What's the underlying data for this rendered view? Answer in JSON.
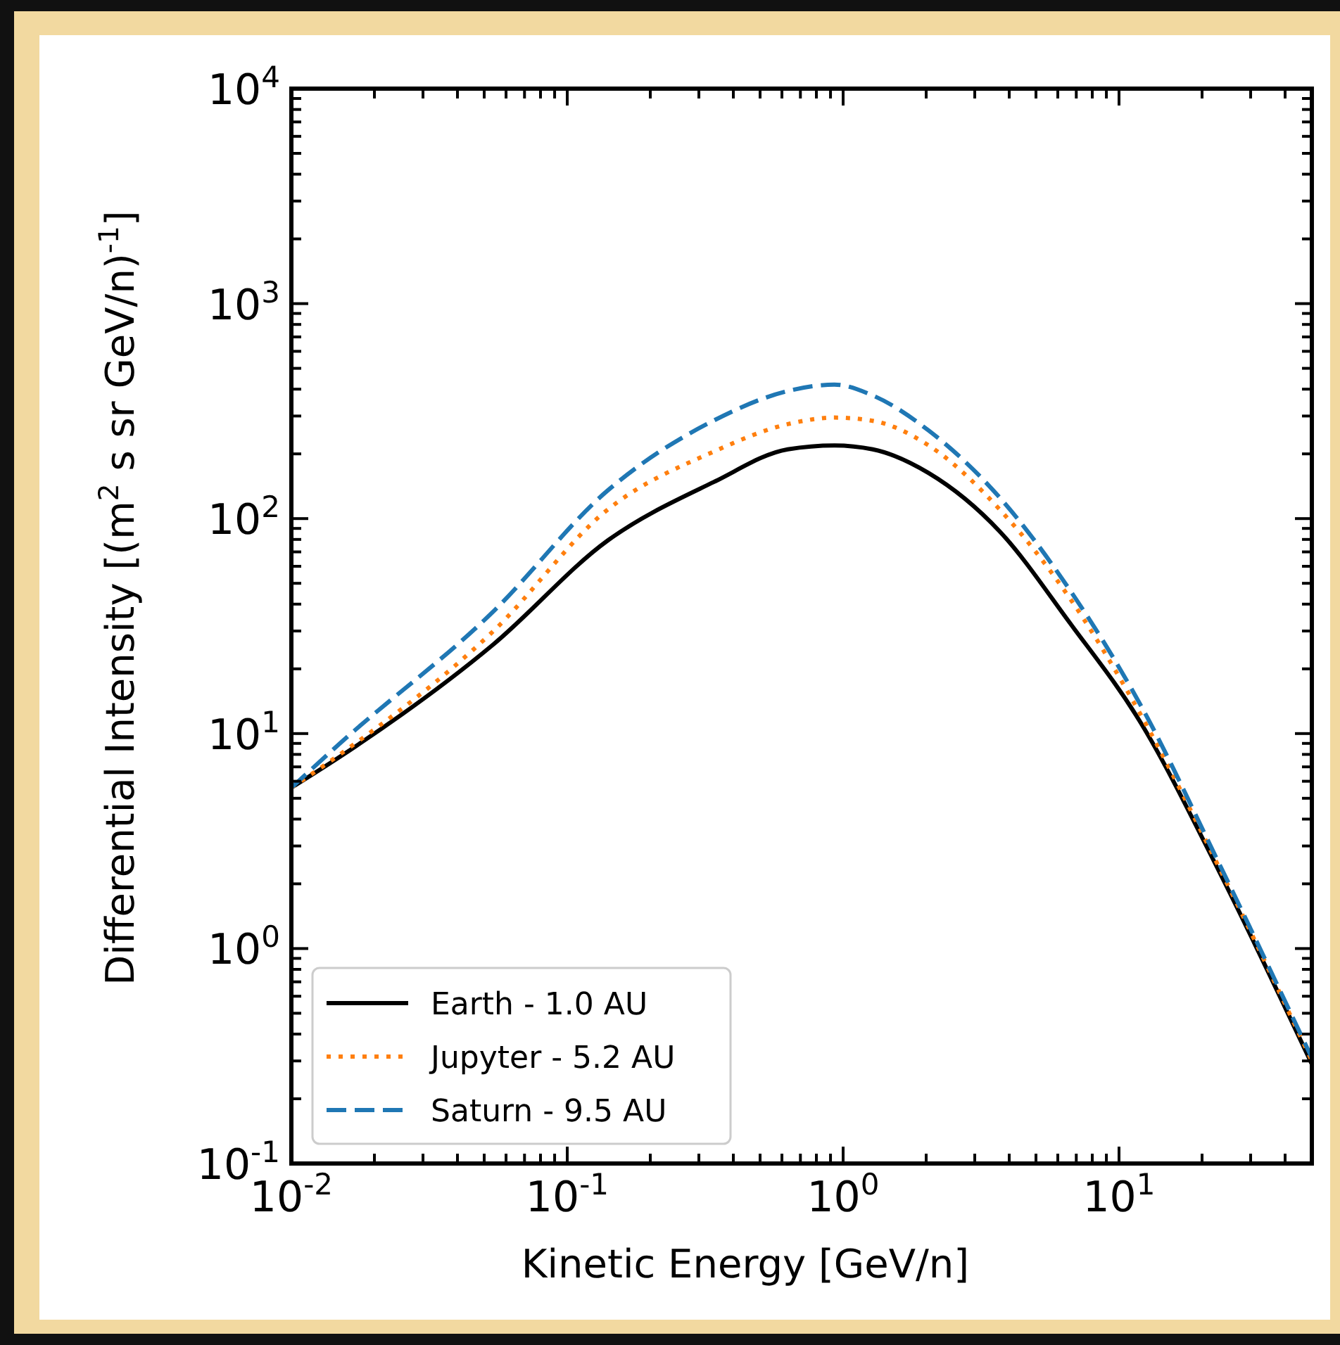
{
  "chart_data": {
    "type": "line",
    "xlabel": "Kinetic Energy [GeV/n]",
    "ylabel": "Differential Intensity  [(m$^{2}$ s sr GeV/n)$^{-1}$]",
    "log": "xy",
    "grid": false,
    "legend": "bottom left",
    "xlim": [
      0.01,
      50
    ],
    "ylim": [
      0.1,
      10000
    ],
    "xticks": [
      {
        "value": 0.01,
        "label": "10$^{-2}$"
      },
      {
        "value": 0.02,
        "label": null
      },
      {
        "value": 0.03,
        "label": null
      },
      {
        "value": 0.04,
        "label": null
      },
      {
        "value": 0.05,
        "label": null
      },
      {
        "value": 0.06,
        "label": null
      },
      {
        "value": 0.07,
        "label": null
      },
      {
        "value": 0.08,
        "label": null
      },
      {
        "value": 0.09,
        "label": null
      },
      {
        "value": 0.1,
        "label": "10$^{-1}$"
      },
      {
        "value": 0.2,
        "label": null
      },
      {
        "value": 0.3,
        "label": null
      },
      {
        "value": 0.4,
        "label": null
      },
      {
        "value": 0.5,
        "label": null
      },
      {
        "value": 0.6,
        "label": null
      },
      {
        "value": 0.7,
        "label": null
      },
      {
        "value": 0.8,
        "label": null
      },
      {
        "value": 0.9,
        "label": null
      },
      {
        "value": 1,
        "label": "10$^{0}$"
      },
      {
        "value": 2,
        "label": null
      },
      {
        "value": 3,
        "label": null
      },
      {
        "value": 4,
        "label": null
      },
      {
        "value": 5,
        "label": null
      },
      {
        "value": 6,
        "label": null
      },
      {
        "value": 7,
        "label": null
      },
      {
        "value": 8,
        "label": null
      },
      {
        "value": 9,
        "label": null
      },
      {
        "value": 10,
        "label": "10$^{1}$"
      },
      {
        "value": 20,
        "label": null
      },
      {
        "value": 30,
        "label": null
      },
      {
        "value": 40,
        "label": null
      }
    ],
    "yticks": [
      {
        "value": 0.1,
        "label": "10$^{-1}$"
      },
      {
        "value": 0.2,
        "label": null
      },
      {
        "value": 0.3,
        "label": null
      },
      {
        "value": 0.4,
        "label": null
      },
      {
        "value": 0.5,
        "label": null
      },
      {
        "value": 0.6,
        "label": null
      },
      {
        "value": 0.7,
        "label": null
      },
      {
        "value": 0.8,
        "label": null
      },
      {
        "value": 0.9,
        "label": null
      },
      {
        "value": 1,
        "label": "10$^{0}$"
      },
      {
        "value": 2,
        "label": null
      },
      {
        "value": 3,
        "label": null
      },
      {
        "value": 4,
        "label": null
      },
      {
        "value": 5,
        "label": null
      },
      {
        "value": 6,
        "label": null
      },
      {
        "value": 7,
        "label": null
      },
      {
        "value": 8,
        "label": null
      },
      {
        "value": 9,
        "label": null
      },
      {
        "value": 10,
        "label": "10$^{1}$"
      },
      {
        "value": 20,
        "label": null
      },
      {
        "value": 30,
        "label": null
      },
      {
        "value": 40,
        "label": null
      },
      {
        "value": 50,
        "label": null
      },
      {
        "value": 60,
        "label": null
      },
      {
        "value": 70,
        "label": null
      },
      {
        "value": 80,
        "label": null
      },
      {
        "value": 90,
        "label": null
      },
      {
        "value": 100,
        "label": "10$^{2}$"
      },
      {
        "value": 200,
        "label": null
      },
      {
        "value": 300,
        "label": null
      },
      {
        "value": 400,
        "label": null
      },
      {
        "value": 500,
        "label": null
      },
      {
        "value": 600,
        "label": null
      },
      {
        "value": 700,
        "label": null
      },
      {
        "value": 800,
        "label": null
      },
      {
        "value": 900,
        "label": null
      },
      {
        "value": 1000,
        "label": "10$^{3}$"
      },
      {
        "value": 2000,
        "label": null
      },
      {
        "value": 3000,
        "label": null
      },
      {
        "value": 4000,
        "label": null
      },
      {
        "value": 5000,
        "label": null
      },
      {
        "value": 6000,
        "label": null
      },
      {
        "value": 7000,
        "label": null
      },
      {
        "value": 8000,
        "label": null
      },
      {
        "value": 9000,
        "label": null
      },
      {
        "value": 10000,
        "label": "10$^{4}$"
      }
    ],
    "x": [
      0.01,
      0.015,
      0.054,
      0.14,
      0.34,
      0.63,
      0.93,
      1.28,
      2.04,
      3.7,
      6.6,
      12,
      23,
      50
    ],
    "series": [
      {
        "name": "Earth - 1.0 AU",
        "color": "#000000",
        "line_style": "solid",
        "values": [
          5.6,
          7.8,
          26,
          79,
          148,
          210,
          219,
          210,
          163,
          87,
          33,
          11.2,
          2.3,
          0.29
        ]
      },
      {
        "name": "Jupyter - 5.2 AU",
        "color": "#ff7f0e",
        "line_style": "dotted",
        "values": [
          5.6,
          8,
          30,
          110,
          205,
          275,
          295,
          285,
          219,
          110,
          43,
          12.2,
          2.4,
          0.3
        ]
      },
      {
        "name": "Saturn - 9.5 AU",
        "color": "#1f77b4",
        "line_style": "dashed",
        "values": [
          5.6,
          9,
          37,
          135,
          286,
          392,
          420,
          374,
          257,
          125,
          47,
          13.5,
          2.5,
          0.31
        ]
      }
    ]
  }
}
